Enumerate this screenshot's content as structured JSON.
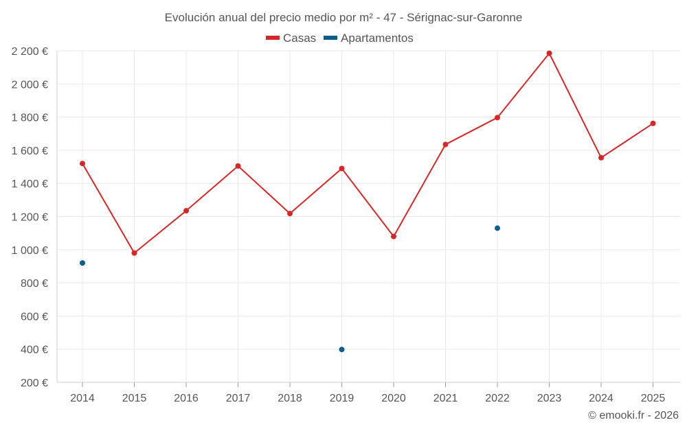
{
  "chart_data": {
    "type": "line",
    "title": "Evolución anual del precio medio por m² - 47 - Sérignac-sur-Garonne",
    "categories": [
      "2014",
      "2015",
      "2016",
      "2017",
      "2018",
      "2019",
      "2020",
      "2021",
      "2022",
      "2023",
      "2024",
      "2025"
    ],
    "series": [
      {
        "name": "Casas",
        "color": "#d62728",
        "values": [
          1520,
          980,
          1235,
          1505,
          1218,
          1490,
          1080,
          1635,
          1797,
          2185,
          1555,
          1762
        ]
      },
      {
        "name": "Apartamentos",
        "color": "#0b5e8e",
        "values": [
          920,
          null,
          null,
          null,
          null,
          398,
          null,
          null,
          1130,
          null,
          null,
          null
        ]
      }
    ],
    "y_ticks": [
      "200 €",
      "400 €",
      "600 €",
      "800 €",
      "1 000 €",
      "1 200 €",
      "1 400 €",
      "1 600 €",
      "1 800 €",
      "2 000 €",
      "2 200 €"
    ],
    "y_tick_values": [
      200,
      400,
      600,
      800,
      1000,
      1200,
      1400,
      1600,
      1800,
      2000,
      2200
    ],
    "ylim": [
      200,
      2200
    ],
    "xlabel": "",
    "ylabel": "",
    "grid": true,
    "legend_position": "top-center"
  },
  "credit": "© emooki.fr - 2026"
}
